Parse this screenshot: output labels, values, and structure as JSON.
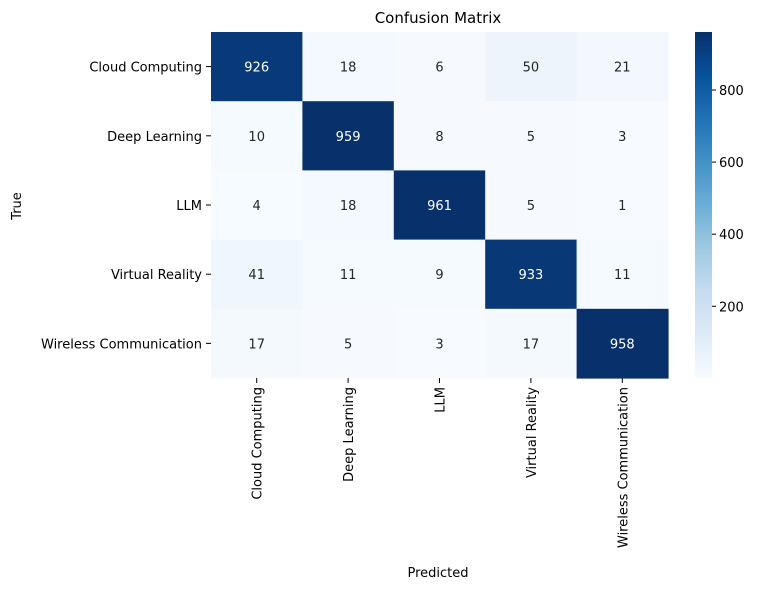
{
  "chart_data": {
    "type": "heatmap",
    "title": "Confusion Matrix",
    "xlabel": "Predicted",
    "ylabel": "True",
    "row_labels": [
      "Cloud Computing",
      "Deep Learning",
      "LLM",
      "Virtual Reality",
      "Wireless Communication"
    ],
    "col_labels": [
      "Cloud Computing",
      "Deep Learning",
      "LLM",
      "Virtual Reality",
      "Wireless Communication"
    ],
    "values": [
      [
        926,
        18,
        6,
        50,
        21
      ],
      [
        10,
        959,
        8,
        5,
        3
      ],
      [
        4,
        18,
        961,
        5,
        1
      ],
      [
        41,
        11,
        9,
        933,
        11
      ],
      [
        17,
        5,
        3,
        17,
        958
      ]
    ],
    "colormap": "Blues",
    "colormap_low": "#f7fbff",
    "colormap_high": "#08306b",
    "colorbar_range": [
      1,
      961
    ],
    "colorbar_ticks": [
      "200",
      "400",
      "600",
      "800"
    ],
    "colorbar_tick_values": [
      200,
      400,
      600,
      800
    ]
  }
}
